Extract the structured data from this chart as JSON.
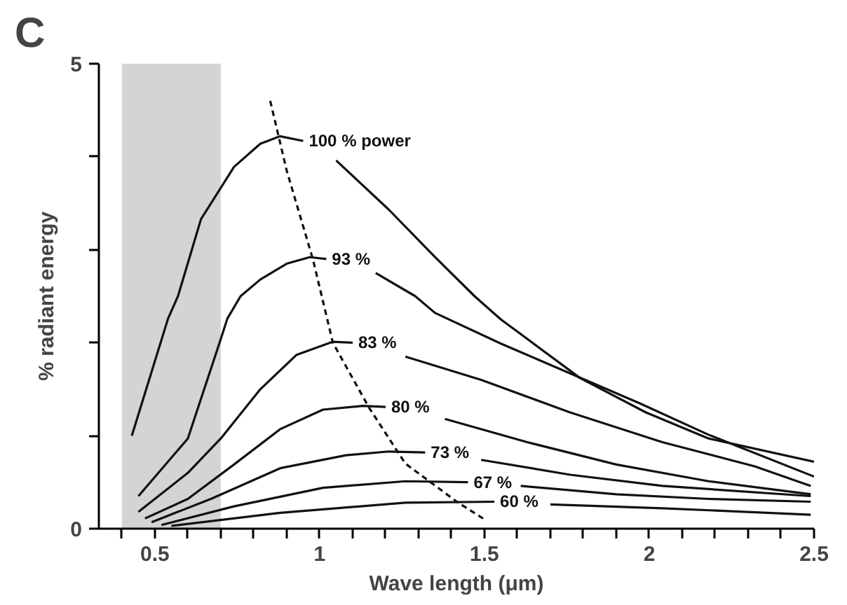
{
  "chart_data": {
    "type": "line",
    "title": "C",
    "xlabel": "Wave length (μm)",
    "ylabel": "% radiant energy",
    "xlim": [
      0.33,
      2.5
    ],
    "ylim": [
      0,
      5
    ],
    "xticks": [
      {
        "value": 0.4,
        "label": null
      },
      0.5,
      {
        "value": 0.6,
        "label": null
      },
      {
        "value": 0.7,
        "label": null
      },
      {
        "value": 0.8,
        "label": null
      },
      {
        "value": 0.9,
        "label": null
      },
      1,
      {
        "value": 1.1,
        "label": null
      },
      {
        "value": 1.2,
        "label": null
      },
      {
        "value": 1.3,
        "label": null
      },
      {
        "value": 1.4,
        "label": null
      },
      1.5,
      {
        "value": 1.6,
        "label": null
      },
      {
        "value": 1.7,
        "label": null
      },
      {
        "value": 1.8,
        "label": null
      },
      {
        "value": 1.9,
        "label": null
      },
      2,
      {
        "value": 2.1,
        "label": null
      },
      {
        "value": 2.2,
        "label": null
      },
      {
        "value": 2.3,
        "label": null
      },
      {
        "value": 2.4,
        "label": null
      },
      2.5
    ],
    "yticks": [
      0,
      {
        "value": 1,
        "label": null
      },
      {
        "value": 2,
        "label": null
      },
      {
        "value": 3,
        "label": null
      },
      {
        "value": 4,
        "label": null
      },
      5
    ],
    "grid": false,
    "legend": false,
    "marker": "none",
    "bands": [
      {
        "axis": "x",
        "from": 0.4,
        "to": 0.7,
        "color": "#d4d4d4"
      }
    ],
    "series": [
      {
        "name": "100 % power",
        "color": "#111111",
        "x": [
          0.43,
          0.54,
          0.57,
          0.64,
          0.74,
          0.82,
          0.88,
          0.95,
          1.0,
          1.05,
          1.21,
          1.35,
          1.47,
          1.55,
          1.63,
          1.79,
          1.99,
          2.18,
          2.5
        ],
        "values": [
          1.0,
          2.26,
          2.5,
          3.33,
          3.89,
          4.14,
          4.22,
          4.17,
          null,
          3.96,
          3.43,
          2.92,
          2.5,
          2.25,
          2.04,
          1.62,
          1.25,
          0.97,
          0.72
        ]
      },
      {
        "name": "93 %",
        "color": "#111111",
        "x": [
          0.45,
          0.6,
          0.7,
          0.72,
          0.76,
          0.82,
          0.9,
          0.97,
          1.02,
          1.1,
          1.17,
          1.29,
          1.35,
          1.55,
          1.76,
          1.97,
          2.18,
          2.5
        ],
        "values": [
          0.35,
          0.97,
          2.04,
          2.26,
          2.5,
          2.68,
          2.85,
          2.92,
          2.9,
          null,
          2.75,
          2.5,
          2.32,
          1.99,
          1.67,
          1.35,
          1.01,
          0.56
        ]
      },
      {
        "name": "83 %",
        "color": "#111111",
        "x": [
          0.45,
          0.6,
          0.7,
          0.82,
          0.93,
          1.04,
          1.1,
          1.2,
          1.26,
          1.49,
          1.76,
          2.04,
          2.32,
          2.49
        ],
        "values": [
          0.18,
          0.6,
          0.97,
          1.5,
          1.87,
          2.01,
          2.0,
          null,
          1.85,
          1.6,
          1.25,
          0.93,
          0.67,
          0.46
        ]
      },
      {
        "name": "80 %",
        "color": "#111111",
        "x": [
          0.47,
          0.6,
          0.74,
          0.88,
          1.01,
          1.13,
          1.2,
          1.3,
          1.38,
          1.63,
          1.9,
          2.18,
          2.49
        ],
        "values": [
          0.11,
          0.32,
          0.69,
          1.07,
          1.28,
          1.32,
          1.31,
          null,
          1.18,
          0.93,
          0.69,
          0.51,
          0.37
        ]
      },
      {
        "name": "73 %",
        "color": "#111111",
        "x": [
          0.49,
          0.67,
          0.88,
          1.08,
          1.21,
          1.32,
          1.4,
          1.49,
          1.76,
          2.04,
          2.49
        ],
        "values": [
          0.07,
          0.32,
          0.65,
          0.79,
          0.83,
          0.82,
          null,
          0.74,
          0.58,
          0.46,
          0.35
        ]
      },
      {
        "name": "67 %",
        "color": "#111111",
        "x": [
          0.52,
          0.74,
          1.01,
          1.26,
          1.45,
          1.55,
          1.61,
          1.9,
          2.18,
          2.49
        ],
        "values": [
          0.04,
          0.24,
          0.44,
          0.51,
          0.5,
          null,
          0.46,
          0.37,
          0.32,
          0.29
        ]
      },
      {
        "name": "60 %",
        "color": "#111111",
        "x": [
          0.55,
          0.88,
          1.26,
          1.53,
          1.62,
          1.7,
          2.04,
          2.49
        ],
        "values": [
          0.03,
          0.17,
          0.28,
          0.29,
          null,
          0.26,
          0.22,
          0.15
        ]
      },
      {
        "color": "#111111",
        "line_style": "dashed",
        "x": [
          0.85,
          0.9,
          0.98,
          1.04,
          1.15,
          1.26,
          1.42,
          1.5
        ],
        "values": [
          4.6,
          3.85,
          2.89,
          2.0,
          1.3,
          0.7,
          0.28,
          0.1
        ]
      }
    ]
  }
}
